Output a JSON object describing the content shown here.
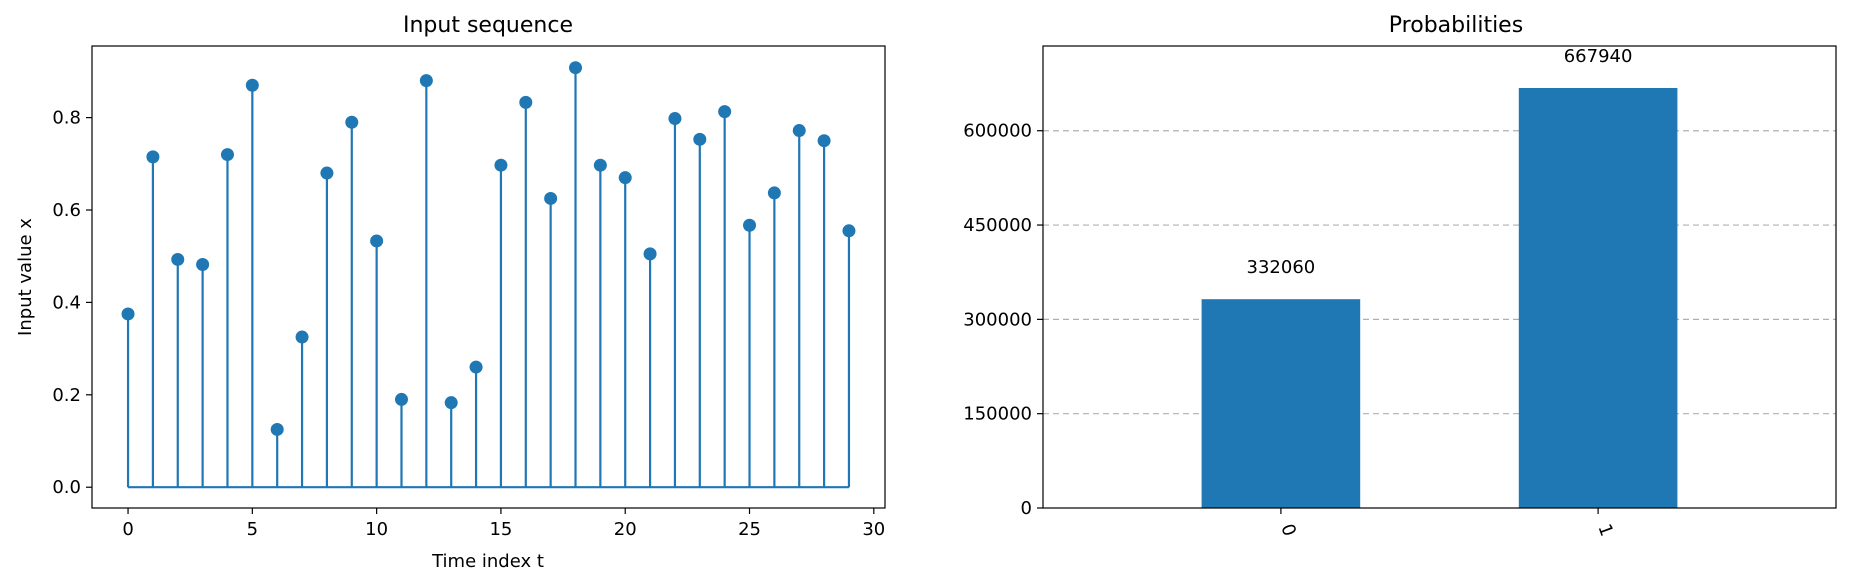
{
  "colors": {
    "series": "#1f77b4",
    "axis": "#000000",
    "grid": "#b0b0b0",
    "background": "#ffffff"
  },
  "chart_data": [
    {
      "type": "stem",
      "title": "Input sequence",
      "xlabel": "Time index t",
      "ylabel": "Input value x",
      "xlim": [
        -1.45,
        30.45
      ],
      "ylim": [
        -0.045,
        0.955
      ],
      "xticks": [
        0,
        5,
        10,
        15,
        20,
        25,
        30
      ],
      "yticks": [
        0.0,
        0.2,
        0.4,
        0.6,
        0.8
      ],
      "ytick_labels": [
        "0.0",
        "0.2",
        "0.4",
        "0.6",
        "0.8"
      ],
      "x": [
        0,
        1,
        2,
        3,
        4,
        5,
        6,
        7,
        8,
        9,
        10,
        11,
        12,
        13,
        14,
        15,
        16,
        17,
        18,
        19,
        20,
        21,
        22,
        23,
        24,
        25,
        26,
        27,
        28,
        29
      ],
      "values": [
        0.375,
        0.715,
        0.493,
        0.482,
        0.72,
        0.87,
        0.125,
        0.325,
        0.68,
        0.79,
        0.533,
        0.19,
        0.88,
        0.183,
        0.26,
        0.697,
        0.833,
        0.625,
        0.908,
        0.697,
        0.67,
        0.505,
        0.798,
        0.753,
        0.813,
        0.567,
        0.637,
        0.772,
        0.75,
        0.555
      ],
      "baseline": 0.0,
      "grid": false
    },
    {
      "type": "bar",
      "title": "Probabilities",
      "categories": [
        "0",
        "1"
      ],
      "values": [
        332060,
        667940
      ],
      "data_labels": [
        "332060",
        "667940"
      ],
      "ylim": [
        0,
        734734
      ],
      "yticks": [
        0,
        150000,
        300000,
        450000,
        600000
      ],
      "ytick_labels": [
        "0",
        "150000",
        "300000",
        "450000",
        "600000"
      ],
      "xtick_rotation": 70,
      "grid": "y-dashed"
    }
  ]
}
